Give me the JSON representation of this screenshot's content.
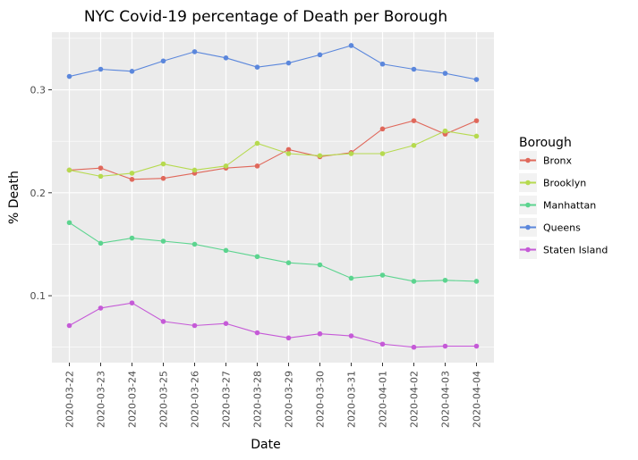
{
  "chart_data": {
    "type": "line",
    "title": "NYC Covid-19 percentage of Death per Borough",
    "xlabel": "Date",
    "ylabel": "% Death",
    "x": [
      "2020-03-22",
      "2020-03-23",
      "2020-03-24",
      "2020-03-25",
      "2020-03-26",
      "2020-03-27",
      "2020-03-28",
      "2020-03-29",
      "2020-03-30",
      "2020-03-31",
      "2020-04-01",
      "2020-04-02",
      "2020-04-03",
      "2020-04-04"
    ],
    "yticks": [
      "0.1",
      "0.2",
      "0.3"
    ],
    "ylim": [
      0.035,
      0.356
    ],
    "grid": true,
    "legend": {
      "title": "Borough",
      "position": "right"
    },
    "series": [
      {
        "name": "Bronx",
        "color": "#e0685b",
        "values": [
          0.222,
          0.224,
          0.213,
          0.214,
          0.219,
          0.224,
          0.226,
          0.242,
          0.235,
          0.239,
          0.262,
          0.27,
          0.257,
          0.27
        ]
      },
      {
        "name": "Brooklyn",
        "color": "#b6da4f",
        "values": [
          0.222,
          0.216,
          0.219,
          0.228,
          0.222,
          0.226,
          0.248,
          0.238,
          0.236,
          0.238,
          0.238,
          0.246,
          0.26,
          0.255
        ]
      },
      {
        "name": "Manhattan",
        "color": "#5cd48f",
        "values": [
          0.171,
          0.151,
          0.156,
          0.153,
          0.15,
          0.144,
          0.138,
          0.132,
          0.13,
          0.117,
          0.12,
          0.114,
          0.115,
          0.114
        ]
      },
      {
        "name": "Queens",
        "color": "#5b87dc",
        "values": [
          0.313,
          0.32,
          0.318,
          0.328,
          0.337,
          0.331,
          0.322,
          0.326,
          0.334,
          0.343,
          0.325,
          0.32,
          0.316,
          0.31
        ]
      },
      {
        "name": "Staten Island",
        "color": "#c55ad7",
        "values": [
          0.071,
          0.088,
          0.093,
          0.075,
          0.071,
          0.073,
          0.064,
          0.059,
          0.063,
          0.061,
          0.053,
          0.05,
          0.051,
          0.051
        ]
      }
    ]
  }
}
